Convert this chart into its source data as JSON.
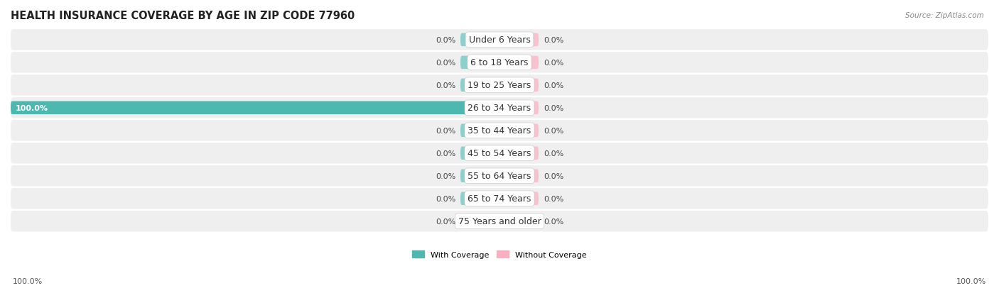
{
  "title": "HEALTH INSURANCE COVERAGE BY AGE IN ZIP CODE 77960",
  "source": "Source: ZipAtlas.com",
  "categories": [
    "Under 6 Years",
    "6 to 18 Years",
    "19 to 25 Years",
    "26 to 34 Years",
    "35 to 44 Years",
    "45 to 54 Years",
    "55 to 64 Years",
    "65 to 74 Years",
    "75 Years and older"
  ],
  "with_coverage": [
    0.0,
    0.0,
    0.0,
    100.0,
    0.0,
    0.0,
    0.0,
    0.0,
    0.0
  ],
  "without_coverage": [
    0.0,
    0.0,
    0.0,
    0.0,
    0.0,
    0.0,
    0.0,
    0.0,
    0.0
  ],
  "coverage_color": "#4db8b0",
  "no_coverage_color": "#f9afc0",
  "stub_coverage_color": "#8ecfcc",
  "stub_no_coverage_color": "#f9c0ce",
  "row_bg_color": "#efefef",
  "row_sep_color": "#ffffff",
  "title_fontsize": 10.5,
  "label_fontsize": 9,
  "tick_fontsize": 8,
  "value_fontsize": 8,
  "xlim": [
    -100,
    100
  ],
  "stub_size": 8,
  "legend_labels": [
    "With Coverage",
    "Without Coverage"
  ],
  "axis_label_left": "100.0%",
  "axis_label_right": "100.0%",
  "bg_color": "#ffffff"
}
